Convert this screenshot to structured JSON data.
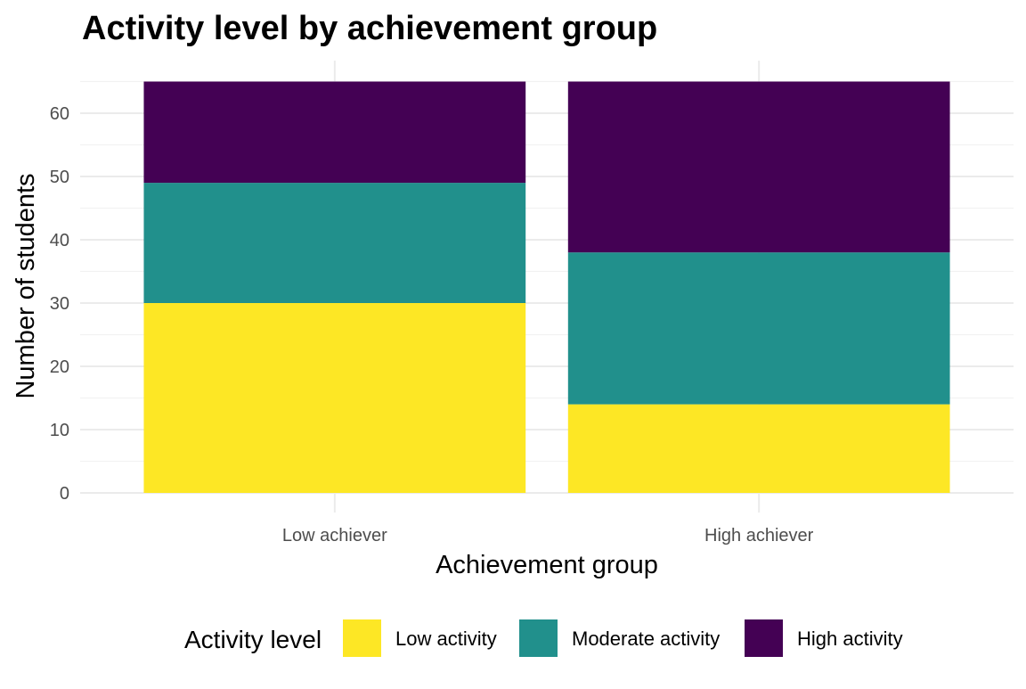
{
  "chart_data": {
    "type": "bar",
    "stacked": true,
    "title": "Activity level by achievement group",
    "xlabel": "Achievement group",
    "ylabel": "Number of students",
    "categories": [
      "Low achiever",
      "High achiever"
    ],
    "series": [
      {
        "name": "Low activity",
        "color": "#FDE725",
        "values": [
          30,
          14
        ]
      },
      {
        "name": "Moderate activity",
        "color": "#21908C",
        "values": [
          19,
          24
        ]
      },
      {
        "name": "High activity",
        "color": "#440154",
        "values": [
          16,
          27
        ]
      }
    ],
    "ylim": [
      0,
      65
    ],
    "yticks": [
      0,
      10,
      20,
      30,
      40,
      50,
      60
    ],
    "legend": {
      "title": "Activity level",
      "position": "bottom"
    },
    "grid": true
  }
}
